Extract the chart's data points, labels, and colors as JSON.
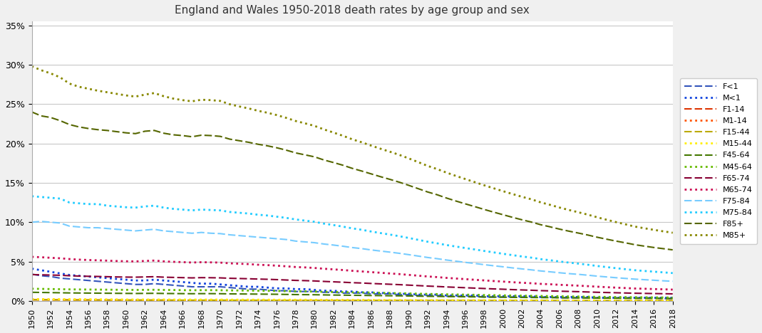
{
  "title": "England and Wales 1950-2018 death rates by age group and sex",
  "years": [
    1950,
    1951,
    1952,
    1953,
    1954,
    1955,
    1956,
    1957,
    1958,
    1959,
    1960,
    1961,
    1962,
    1963,
    1964,
    1965,
    1966,
    1967,
    1968,
    1969,
    1970,
    1971,
    1972,
    1973,
    1974,
    1975,
    1976,
    1977,
    1978,
    1979,
    1980,
    1981,
    1982,
    1983,
    1984,
    1985,
    1986,
    1987,
    1988,
    1989,
    1990,
    1991,
    1992,
    1993,
    1994,
    1995,
    1996,
    1997,
    1998,
    1999,
    2000,
    2001,
    2002,
    2003,
    2004,
    2005,
    2006,
    2007,
    2008,
    2009,
    2010,
    2011,
    2012,
    2013,
    2014,
    2015,
    2016,
    2017,
    2018
  ],
  "series": {
    "F<1": [
      0.034,
      0.032,
      0.031,
      0.029,
      0.028,
      0.027,
      0.026,
      0.025,
      0.024,
      0.023,
      0.022,
      0.021,
      0.021,
      0.022,
      0.021,
      0.02,
      0.019,
      0.018,
      0.018,
      0.018,
      0.018,
      0.017,
      0.016,
      0.015,
      0.015,
      0.014,
      0.013,
      0.013,
      0.012,
      0.012,
      0.012,
      0.011,
      0.011,
      0.01,
      0.01,
      0.01,
      0.009,
      0.009,
      0.009,
      0.008,
      0.008,
      0.007,
      0.007,
      0.007,
      0.006,
      0.006,
      0.006,
      0.006,
      0.005,
      0.005,
      0.005,
      0.005,
      0.005,
      0.005,
      0.005,
      0.005,
      0.004,
      0.004,
      0.004,
      0.004,
      0.004,
      0.004,
      0.004,
      0.004,
      0.004,
      0.004,
      0.004,
      0.003,
      0.003
    ],
    "M<1": [
      0.041,
      0.039,
      0.037,
      0.035,
      0.033,
      0.032,
      0.031,
      0.03,
      0.029,
      0.028,
      0.027,
      0.026,
      0.026,
      0.027,
      0.026,
      0.025,
      0.024,
      0.023,
      0.022,
      0.022,
      0.021,
      0.02,
      0.019,
      0.018,
      0.018,
      0.017,
      0.016,
      0.016,
      0.015,
      0.015,
      0.014,
      0.013,
      0.013,
      0.012,
      0.012,
      0.011,
      0.011,
      0.01,
      0.01,
      0.009,
      0.009,
      0.008,
      0.008,
      0.008,
      0.007,
      0.007,
      0.007,
      0.007,
      0.006,
      0.006,
      0.006,
      0.006,
      0.006,
      0.006,
      0.005,
      0.005,
      0.005,
      0.005,
      0.005,
      0.005,
      0.004,
      0.004,
      0.004,
      0.004,
      0.004,
      0.004,
      0.004,
      0.004,
      0.004
    ],
    "F1-14": [
      0.0015,
      0.0015,
      0.0014,
      0.0014,
      0.0013,
      0.0013,
      0.0012,
      0.0012,
      0.0011,
      0.0011,
      0.001,
      0.001,
      0.001,
      0.001,
      0.0009,
      0.0009,
      0.0008,
      0.0008,
      0.0008,
      0.0008,
      0.0008,
      0.0007,
      0.0007,
      0.0007,
      0.0007,
      0.0007,
      0.0006,
      0.0006,
      0.0006,
      0.0006,
      0.0005,
      0.0005,
      0.0005,
      0.0005,
      0.0005,
      0.0005,
      0.0004,
      0.0004,
      0.0004,
      0.0004,
      0.0004,
      0.0004,
      0.0003,
      0.0003,
      0.0003,
      0.0003,
      0.0003,
      0.0003,
      0.0003,
      0.0003,
      0.0002,
      0.0002,
      0.0002,
      0.0002,
      0.0002,
      0.0002,
      0.0002,
      0.0002,
      0.0002,
      0.0002,
      0.0002,
      0.0002,
      0.0002,
      0.0002,
      0.0002,
      0.0002,
      0.0002,
      0.0002,
      0.0001
    ],
    "M1-14": [
      0.002,
      0.0019,
      0.0018,
      0.0018,
      0.0017,
      0.0017,
      0.0016,
      0.0016,
      0.0015,
      0.0015,
      0.0014,
      0.0014,
      0.0013,
      0.0014,
      0.0013,
      0.0013,
      0.0012,
      0.0012,
      0.0011,
      0.0011,
      0.0011,
      0.001,
      0.001,
      0.001,
      0.001,
      0.0009,
      0.0009,
      0.0009,
      0.0008,
      0.0008,
      0.0008,
      0.0007,
      0.0007,
      0.0007,
      0.0006,
      0.0006,
      0.0006,
      0.0005,
      0.0005,
      0.0005,
      0.0005,
      0.0005,
      0.0004,
      0.0004,
      0.0004,
      0.0004,
      0.0004,
      0.0004,
      0.0003,
      0.0003,
      0.0003,
      0.0003,
      0.0003,
      0.0003,
      0.0003,
      0.0002,
      0.0002,
      0.0002,
      0.0002,
      0.0002,
      0.0002,
      0.0002,
      0.0002,
      0.0002,
      0.0002,
      0.0002,
      0.0002,
      0.0002,
      0.0002
    ],
    "F15-44": [
      0.0015,
      0.0015,
      0.0014,
      0.0014,
      0.0013,
      0.0013,
      0.0013,
      0.0012,
      0.0012,
      0.0012,
      0.0011,
      0.0011,
      0.0011,
      0.0011,
      0.0011,
      0.001,
      0.001,
      0.001,
      0.001,
      0.001,
      0.001,
      0.0009,
      0.0009,
      0.0009,
      0.0009,
      0.0009,
      0.0008,
      0.0008,
      0.0008,
      0.0008,
      0.0008,
      0.0007,
      0.0007,
      0.0007,
      0.0007,
      0.0007,
      0.0007,
      0.0006,
      0.0006,
      0.0006,
      0.0006,
      0.0006,
      0.0006,
      0.0005,
      0.0005,
      0.0005,
      0.0005,
      0.0005,
      0.0005,
      0.0005,
      0.0005,
      0.0005,
      0.0004,
      0.0004,
      0.0004,
      0.0004,
      0.0004,
      0.0004,
      0.0004,
      0.0004,
      0.0003,
      0.0003,
      0.0003,
      0.0003,
      0.0003,
      0.0003,
      0.0003,
      0.0003,
      0.0003
    ],
    "M15-44": [
      0.0022,
      0.0022,
      0.0021,
      0.0021,
      0.002,
      0.002,
      0.002,
      0.0019,
      0.0019,
      0.0019,
      0.0018,
      0.0018,
      0.0018,
      0.0018,
      0.0018,
      0.0017,
      0.0017,
      0.0017,
      0.0017,
      0.0017,
      0.0017,
      0.0016,
      0.0016,
      0.0016,
      0.0016,
      0.0016,
      0.0015,
      0.0015,
      0.0015,
      0.0015,
      0.0014,
      0.0013,
      0.0013,
      0.0013,
      0.0013,
      0.0012,
      0.0012,
      0.0011,
      0.0011,
      0.0011,
      0.001,
      0.001,
      0.001,
      0.001,
      0.0009,
      0.0009,
      0.0009,
      0.0009,
      0.0009,
      0.0009,
      0.0008,
      0.0008,
      0.0008,
      0.0008,
      0.0008,
      0.0008,
      0.0007,
      0.0007,
      0.0007,
      0.0007,
      0.0007,
      0.0007,
      0.0006,
      0.0006,
      0.0006,
      0.0006,
      0.0006,
      0.0006,
      0.0006
    ],
    "F45-64": [
      0.011,
      0.0108,
      0.0106,
      0.0104,
      0.0102,
      0.0101,
      0.01,
      0.0099,
      0.0098,
      0.0097,
      0.0096,
      0.0095,
      0.0096,
      0.0097,
      0.0095,
      0.0094,
      0.0093,
      0.0092,
      0.0093,
      0.0093,
      0.0092,
      0.009,
      0.0089,
      0.0088,
      0.0087,
      0.0086,
      0.0085,
      0.0083,
      0.0081,
      0.008,
      0.0079,
      0.0077,
      0.0075,
      0.0074,
      0.0072,
      0.0071,
      0.0069,
      0.0068,
      0.0066,
      0.0065,
      0.0063,
      0.0061,
      0.0059,
      0.0058,
      0.0056,
      0.0055,
      0.0053,
      0.0052,
      0.005,
      0.0049,
      0.0048,
      0.0046,
      0.0045,
      0.0044,
      0.0043,
      0.0042,
      0.0041,
      0.004,
      0.0039,
      0.0038,
      0.0037,
      0.0036,
      0.0035,
      0.0034,
      0.0033,
      0.0033,
      0.0032,
      0.0032,
      0.0031
    ],
    "M45-64": [
      0.0155,
      0.0153,
      0.0151,
      0.0149,
      0.0147,
      0.0146,
      0.0145,
      0.0144,
      0.0143,
      0.0142,
      0.0141,
      0.014,
      0.0141,
      0.0142,
      0.014,
      0.0139,
      0.0137,
      0.0136,
      0.0137,
      0.0137,
      0.0136,
      0.0134,
      0.0133,
      0.0132,
      0.013,
      0.0129,
      0.0127,
      0.0125,
      0.0122,
      0.0121,
      0.0119,
      0.0116,
      0.0114,
      0.0112,
      0.0109,
      0.0108,
      0.0105,
      0.0103,
      0.01,
      0.0098,
      0.0095,
      0.0092,
      0.0089,
      0.0087,
      0.0084,
      0.0082,
      0.008,
      0.0078,
      0.0075,
      0.0073,
      0.0071,
      0.0069,
      0.0067,
      0.0065,
      0.0063,
      0.0061,
      0.0059,
      0.0057,
      0.0056,
      0.0054,
      0.0052,
      0.0051,
      0.0049,
      0.0048,
      0.0047,
      0.0046,
      0.0045,
      0.0044,
      0.0043
    ],
    "F65-74": [
      0.0335,
      0.0332,
      0.0329,
      0.0326,
      0.032,
      0.0316,
      0.0313,
      0.0311,
      0.0308,
      0.0305,
      0.0303,
      0.0302,
      0.0305,
      0.0308,
      0.0302,
      0.0299,
      0.0296,
      0.0293,
      0.0296,
      0.0295,
      0.0293,
      0.0288,
      0.0285,
      0.0282,
      0.0278,
      0.0275,
      0.0271,
      0.0266,
      0.0261,
      0.0258,
      0.0254,
      0.0248,
      0.0243,
      0.0238,
      0.0232,
      0.0228,
      0.0222,
      0.0217,
      0.0212,
      0.0207,
      0.0201,
      0.0195,
      0.0189,
      0.0184,
      0.0178,
      0.0173,
      0.0168,
      0.0163,
      0.0158,
      0.0153,
      0.0149,
      0.0144,
      0.014,
      0.0136,
      0.0131,
      0.0128,
      0.0124,
      0.0121,
      0.0118,
      0.0114,
      0.011,
      0.0107,
      0.0104,
      0.0101,
      0.0098,
      0.0096,
      0.0094,
      0.0092,
      0.009
    ],
    "M65-74": [
      0.056,
      0.0555,
      0.0548,
      0.0542,
      0.0532,
      0.0525,
      0.052,
      0.0516,
      0.0512,
      0.0507,
      0.0504,
      0.0502,
      0.0508,
      0.0513,
      0.0503,
      0.0497,
      0.0493,
      0.0488,
      0.0492,
      0.049,
      0.0487,
      0.0478,
      0.0473,
      0.0468,
      0.046,
      0.0455,
      0.0448,
      0.044,
      0.0431,
      0.0426,
      0.0419,
      0.0409,
      0.0401,
      0.0393,
      0.0383,
      0.0375,
      0.0366,
      0.0358,
      0.0349,
      0.0341,
      0.0331,
      0.0321,
      0.0311,
      0.0303,
      0.0293,
      0.0285,
      0.0277,
      0.0269,
      0.0261,
      0.0253,
      0.0246,
      0.0238,
      0.0231,
      0.0225,
      0.0217,
      0.0212,
      0.0205,
      0.02,
      0.0194,
      0.0188,
      0.0181,
      0.0175,
      0.0169,
      0.0164,
      0.0158,
      0.0155,
      0.0151,
      0.0148,
      0.0144
    ],
    "F75-84": [
      0.1,
      0.101,
      0.1,
      0.099,
      0.095,
      0.094,
      0.093,
      0.093,
      0.092,
      0.091,
      0.09,
      0.089,
      0.09,
      0.091,
      0.089,
      0.088,
      0.087,
      0.086,
      0.087,
      0.086,
      0.0855,
      0.084,
      0.083,
      0.082,
      0.081,
      0.08,
      0.079,
      0.078,
      0.076,
      0.075,
      0.074,
      0.0723,
      0.071,
      0.0695,
      0.0678,
      0.0665,
      0.0648,
      0.0634,
      0.062,
      0.0605,
      0.0588,
      0.057,
      0.0552,
      0.0537,
      0.052,
      0.0505,
      0.049,
      0.0476,
      0.0461,
      0.0447,
      0.0434,
      0.042,
      0.0407,
      0.0395,
      0.0381,
      0.037,
      0.0358,
      0.0347,
      0.0338,
      0.0327,
      0.0315,
      0.0305,
      0.0295,
      0.0286,
      0.0277,
      0.027,
      0.0263,
      0.0256,
      0.025
    ],
    "M75-84": [
      0.133,
      0.132,
      0.131,
      0.13,
      0.125,
      0.124,
      0.123,
      0.123,
      0.121,
      0.12,
      0.119,
      0.1185,
      0.12,
      0.121,
      0.1185,
      0.117,
      0.116,
      0.115,
      0.116,
      0.1155,
      0.115,
      0.113,
      0.112,
      0.111,
      0.1095,
      0.1085,
      0.107,
      0.1055,
      0.1035,
      0.102,
      0.1005,
      0.0982,
      0.0964,
      0.0944,
      0.0922,
      0.0904,
      0.0882,
      0.0862,
      0.0843,
      0.0822,
      0.08,
      0.0776,
      0.0752,
      0.0732,
      0.071,
      0.0691,
      0.0672,
      0.0654,
      0.0635,
      0.0617,
      0.0599,
      0.0582,
      0.0565,
      0.055,
      0.0531,
      0.0517,
      0.0501,
      0.0487,
      0.0474,
      0.046,
      0.0444,
      0.043,
      0.0416,
      0.0403,
      0.039,
      0.0381,
      0.0372,
      0.0363,
      0.0354
    ],
    "F85+": [
      0.24,
      0.235,
      0.233,
      0.229,
      0.224,
      0.221,
      0.219,
      0.2175,
      0.2165,
      0.215,
      0.2135,
      0.2125,
      0.2155,
      0.2165,
      0.213,
      0.211,
      0.21,
      0.2085,
      0.2105,
      0.21,
      0.209,
      0.2055,
      0.2035,
      0.2015,
      0.199,
      0.197,
      0.1945,
      0.1915,
      0.188,
      0.1855,
      0.183,
      0.179,
      0.1758,
      0.1724,
      0.1684,
      0.165,
      0.1614,
      0.1578,
      0.1544,
      0.1508,
      0.1468,
      0.1426,
      0.1384,
      0.1349,
      0.1307,
      0.1269,
      0.1233,
      0.1198,
      0.1162,
      0.1128,
      0.1095,
      0.1062,
      0.1031,
      0.1002,
      0.0968,
      0.0941,
      0.0912,
      0.0886,
      0.0862,
      0.0837,
      0.0809,
      0.0784,
      0.076,
      0.0738,
      0.0714,
      0.0696,
      0.0679,
      0.0664,
      0.0649
    ],
    "M85+": [
      0.298,
      0.293,
      0.289,
      0.284,
      0.276,
      0.272,
      0.2695,
      0.267,
      0.265,
      0.263,
      0.261,
      0.2595,
      0.262,
      0.264,
      0.26,
      0.257,
      0.255,
      0.2535,
      0.2555,
      0.255,
      0.254,
      0.2498,
      0.247,
      0.2445,
      0.2415,
      0.239,
      0.236,
      0.2325,
      0.2285,
      0.2255,
      0.2223,
      0.2178,
      0.2139,
      0.2098,
      0.2053,
      0.2015,
      0.1973,
      0.1933,
      0.1895,
      0.1855,
      0.181,
      0.1763,
      0.1715,
      0.1675,
      0.163,
      0.1588,
      0.1548,
      0.1509,
      0.1469,
      0.1431,
      0.1394,
      0.1358,
      0.1323,
      0.1291,
      0.1252,
      0.122,
      0.1186,
      0.1155,
      0.1126,
      0.1096,
      0.1062,
      0.1031,
      0.1001,
      0.0973,
      0.0944,
      0.0923,
      0.0903,
      0.0884,
      0.0866
    ]
  },
  "colors": {
    "F<1": "#3355bb",
    "M<1": "#1144dd",
    "F1-14": "#dd3300",
    "M1-14": "#ff5500",
    "F15-44": "#bbaa00",
    "M15-44": "#ffee00",
    "F45-64": "#447700",
    "M45-64": "#66bb00",
    "F65-74": "#880033",
    "M65-74": "#cc1155",
    "F75-84": "#77ccff",
    "M75-84": "#22ccff",
    "F85+": "#556600",
    "M85+": "#888800"
  },
  "ylim": [
    0,
    0.355
  ],
  "yticks": [
    0.0,
    0.05,
    0.1,
    0.15,
    0.2,
    0.25,
    0.3,
    0.35
  ],
  "ytick_labels": [
    "0%",
    "5%",
    "10%",
    "15%",
    "20%",
    "25%",
    "30%",
    "35%"
  ],
  "bg_color": "#f0f0f0",
  "plot_bg": "#ffffff"
}
